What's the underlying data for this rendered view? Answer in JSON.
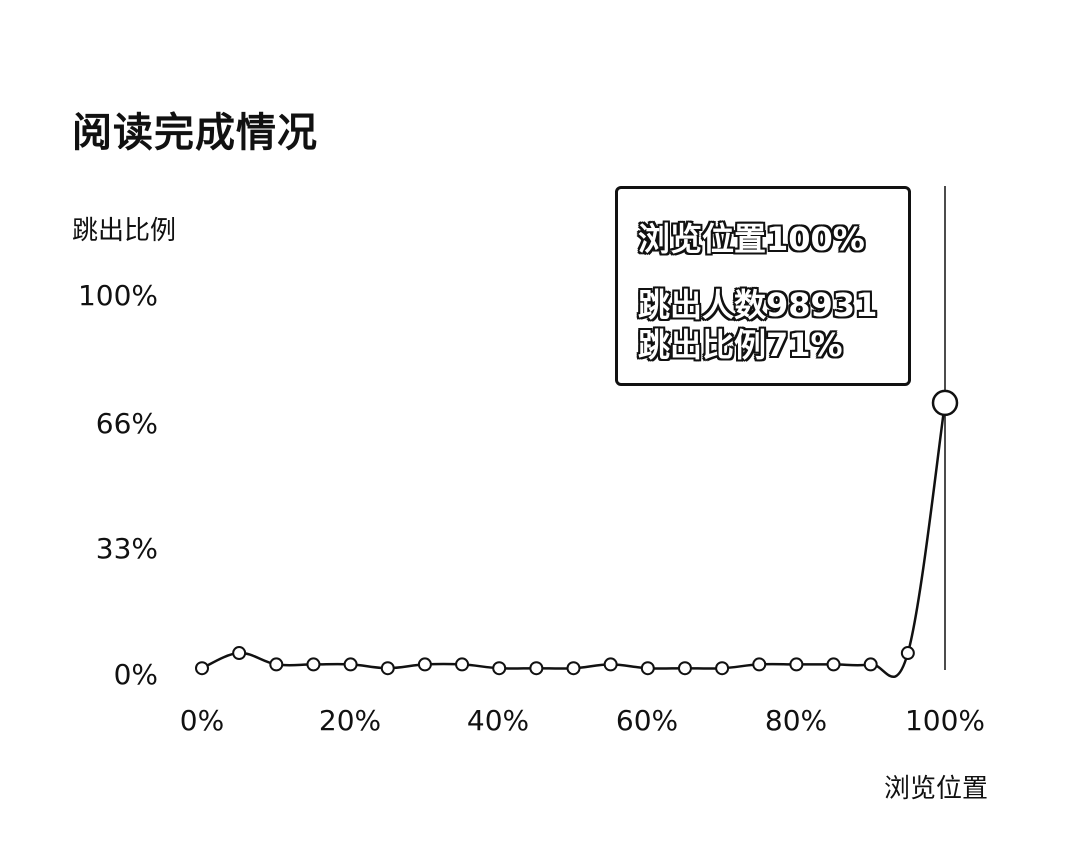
{
  "chart_data": {
    "type": "line",
    "title": "阅读完成情况",
    "ylabel": "跳出比例",
    "xlabel": "浏览位置",
    "x": [
      0,
      5,
      10,
      15,
      20,
      25,
      30,
      35,
      40,
      45,
      50,
      55,
      60,
      65,
      70,
      75,
      80,
      85,
      90,
      95,
      100
    ],
    "y": [
      1,
      5,
      2,
      2,
      2,
      1,
      2,
      2,
      1,
      1,
      1,
      2,
      1,
      1,
      1,
      2,
      2,
      2,
      2,
      5,
      71
    ],
    "xlim": [
      0,
      100
    ],
    "ylim": [
      0,
      100
    ],
    "x_ticks": [
      "0%",
      "20%",
      "40%",
      "60%",
      "80%",
      "100%"
    ],
    "y_ticks": [
      "100%",
      "66%",
      "33%",
      "0%"
    ],
    "grid": false,
    "tooltip": {
      "position": "浏览位置100%",
      "count": "跳出人数98931",
      "ratio": "跳出比例71%"
    }
  }
}
